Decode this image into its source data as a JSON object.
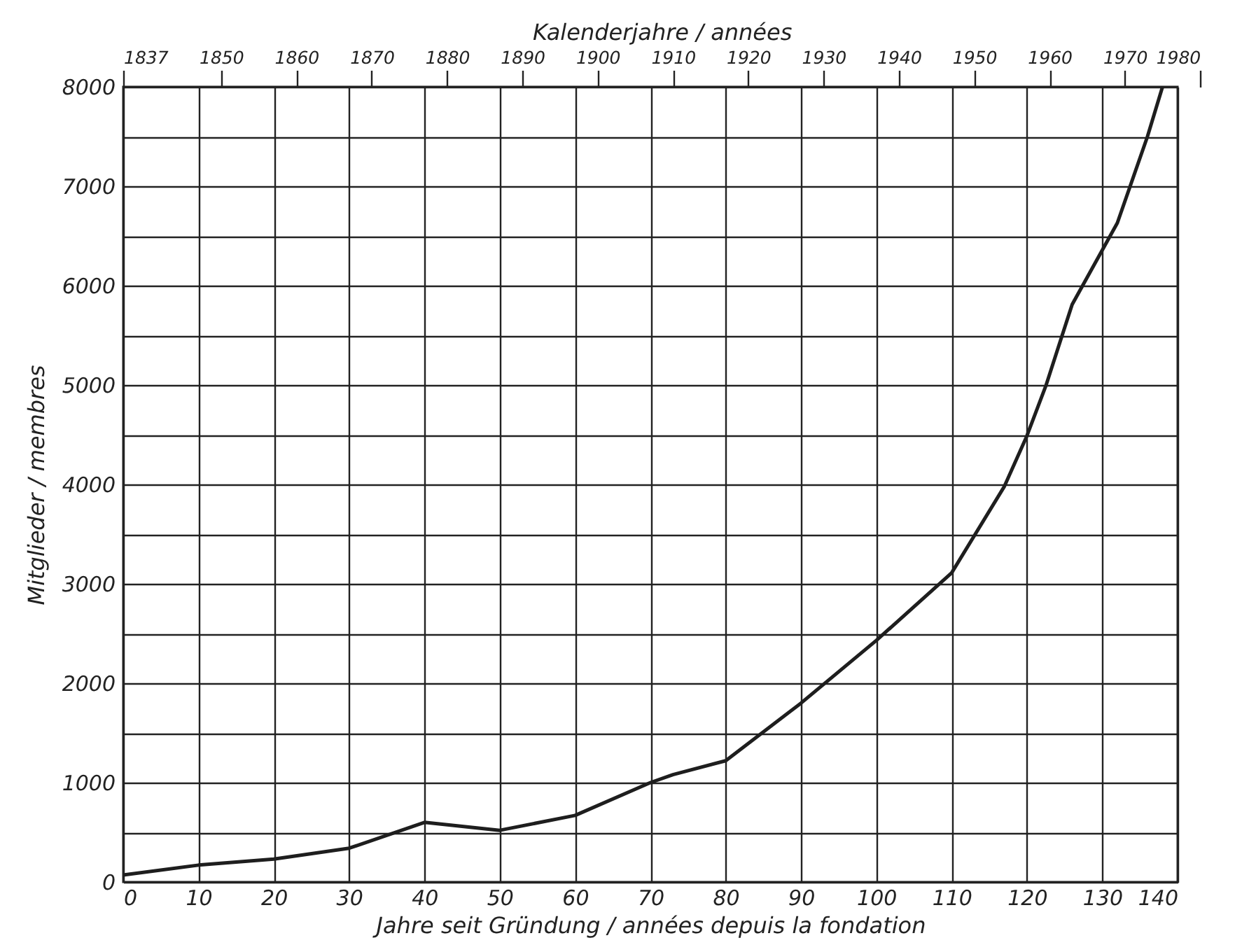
{
  "chart_data": {
    "type": "line",
    "xlabel": "Jahre seit Gründung / années depuis la fondation",
    "ylabel": "Mitglieder / membres",
    "x2label": "Kalenderjahre / années",
    "x": [
      0,
      10,
      20,
      30,
      40,
      50,
      60,
      70,
      73,
      80,
      90,
      100,
      110,
      117,
      120,
      122.5,
      126,
      132,
      136,
      138
    ],
    "series": [
      {
        "color": "#1e1e1e",
        "values": [
          70,
          170,
          230,
          340,
          600,
          520,
          670,
          1000,
          1080,
          1220,
          1800,
          2430,
          3110,
          3980,
          4490,
          4990,
          5810,
          6630,
          7500,
          8000
        ]
      }
    ],
    "xlim": [
      0,
      140
    ],
    "xticks": [
      0,
      10,
      20,
      30,
      40,
      50,
      60,
      70,
      80,
      90,
      100,
      110,
      120,
      130,
      140
    ],
    "ylim": [
      0,
      8000
    ],
    "yticks": [
      0,
      {
        "value": 500,
        "label": null
      },
      1000,
      {
        "value": 1500,
        "label": null
      },
      2000,
      {
        "value": 2500,
        "label": null
      },
      3000,
      {
        "value": 3500,
        "label": null
      },
      4000,
      {
        "value": 4500,
        "label": null
      },
      5000,
      {
        "value": 5500,
        "label": null
      },
      6000,
      {
        "value": 6500,
        "label": null
      },
      7000,
      {
        "value": 7500,
        "label": null
      },
      8000
    ],
    "x2lim": [
      1837,
      1980
    ],
    "x2ticks": [
      1837,
      1850,
      1860,
      1870,
      1880,
      1890,
      1900,
      1910,
      1920,
      1930,
      1940,
      1950,
      1960,
      1970,
      1980
    ],
    "grid": true
  }
}
